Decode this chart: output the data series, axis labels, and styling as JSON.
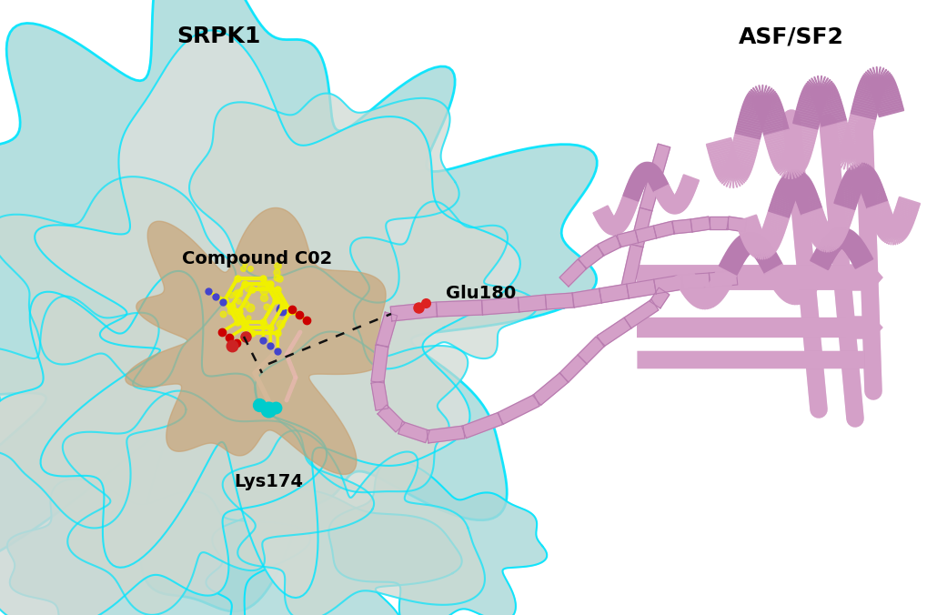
{
  "title_left": "SRPK1",
  "title_right": "ASF/SF2",
  "label_compound": "Compound C02",
  "label_glu": "Glu180",
  "label_lys": "Lys174",
  "bg_color": "#ffffff",
  "surface_teal": "#00e5ff",
  "surface_gray": "#c8d8d8",
  "surface_tan": "#c8a878",
  "protein_pink": "#d4a0c8",
  "compound_yellow": "#f0f000",
  "compound_red": "#cc0000",
  "compound_blue": "#4444cc",
  "lys_tan": "#d4b898",
  "lys_cyan": "#00cccc",
  "lys_blue": "#4444cc",
  "dashed_color": "#111111",
  "title_fontsize": 18,
  "label_fontsize": 14
}
